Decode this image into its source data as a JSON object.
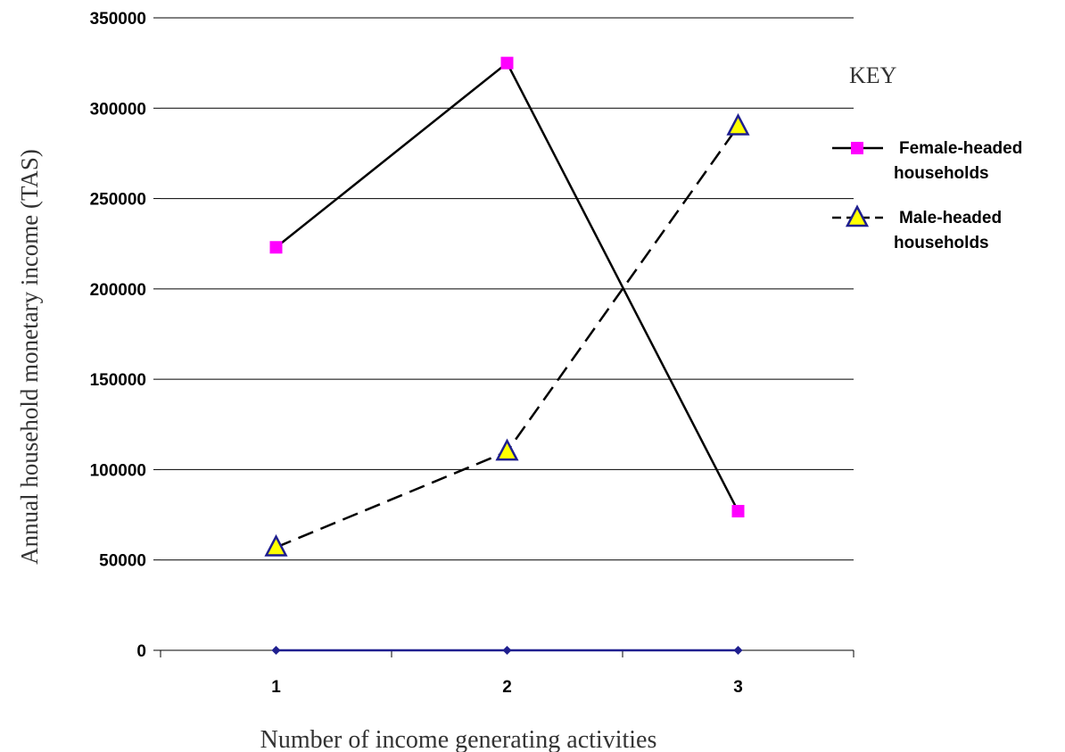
{
  "chart_data": {
    "type": "line",
    "x": [
      1,
      2,
      3
    ],
    "series": [
      {
        "name": "Female-headed households",
        "values": [
          223000,
          325000,
          77000
        ],
        "color": "#ff00ff",
        "marker": "square",
        "line": "solid"
      },
      {
        "name": "Male-headed households",
        "values": [
          57000,
          110000,
          290000
        ],
        "color": "#ffff00",
        "marker": "triangle",
        "line": "dashed"
      },
      {
        "name": "",
        "values": [
          0,
          0,
          0
        ],
        "color": "#1f1f8f",
        "marker": "diamond",
        "line": "solid"
      }
    ],
    "xlabel": "Number of income generating activities",
    "ylabel": "Annual household monetary income (TAS)",
    "ylim": [
      0,
      350000
    ],
    "yticks": [
      0,
      50000,
      100000,
      150000,
      200000,
      250000,
      300000,
      350000
    ],
    "ytick_labels": [
      "0",
      "50000",
      "100000",
      "150000",
      "200000",
      "250000",
      "300000",
      "350000"
    ],
    "xtick_labels": [
      "1",
      "2",
      "3"
    ],
    "legend_title": "KEY",
    "legend_labels": [
      [
        "Female-headed",
        "households"
      ],
      [
        "Male-headed",
        "households"
      ]
    ],
    "grid": true,
    "legend_position": "right"
  }
}
